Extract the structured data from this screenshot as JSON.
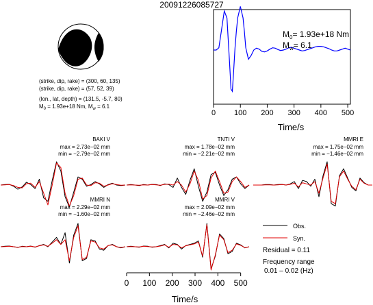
{
  "title": "20091226085727",
  "source_params": {
    "line1": "(strike, dip, rake) = (300, 60, 135)",
    "line2": "(strike, dip, rake) = (57, 52, 39)",
    "line3": "(lon., lat, depth) = (131.5, -5.7, 80)",
    "m0_value": "1.93e+18 Nm",
    "mw_value": "6.1"
  },
  "stf": {
    "m0_label": "= 1.93e+18 Nm",
    "mw_label": "= 6.1",
    "xlabel": "Time/s"
  },
  "legend": {
    "obs": "Obs.",
    "syn": "Syn.",
    "residual": "Residual = 0.11",
    "freq_title": "Frequency range",
    "freq_range": "0.01 – 0.02 (Hz)"
  },
  "waveform_xlabel": "Time/s",
  "colors": {
    "stf": "#0000ff",
    "obs": "#000000",
    "syn": "#e00000",
    "mech_fill": "#000000"
  },
  "chart_data": [
    {
      "type": "line",
      "name": "source time function",
      "x_ticks": [
        0,
        100,
        200,
        300,
        400,
        500
      ],
      "xlim": [
        0,
        510
      ],
      "series": [
        {
          "name": "STF",
          "x": [
            0,
            10,
            20,
            30,
            40,
            50,
            60,
            65,
            70,
            75,
            80,
            85,
            90,
            100,
            110,
            115,
            120,
            130,
            140,
            150,
            160,
            170,
            180,
            190,
            200,
            210,
            220,
            230,
            240,
            250,
            260,
            270,
            280,
            290,
            300,
            310,
            320,
            330,
            340,
            350,
            360,
            370,
            380,
            390,
            400,
            410,
            420,
            430,
            440,
            450,
            460,
            470,
            480,
            490,
            500,
            510
          ],
          "y": [
            0.0,
            0.0,
            0.05,
            0.45,
            0.85,
            0.7,
            -0.3,
            -0.85,
            -0.9,
            -0.45,
            0.05,
            0.4,
            0.7,
            0.95,
            0.7,
            0.4,
            0.05,
            -0.2,
            -0.12,
            0.0,
            0.04,
            0.02,
            -0.03,
            -0.04,
            -0.02,
            0.02,
            0.05,
            0.04,
            0.01,
            -0.01,
            0.0,
            0.02,
            0.05,
            0.06,
            0.04,
            0.02,
            0.0,
            -0.02,
            -0.01,
            0.01,
            0.03,
            0.05,
            0.07,
            0.08,
            0.08,
            0.07,
            0.05,
            0.03,
            0.0,
            -0.02,
            -0.02,
            0.0,
            0.02,
            0.04,
            0.02,
            0.0
          ]
        }
      ]
    },
    {
      "type": "line",
      "name": "waveforms",
      "xlim": [
        0,
        510
      ],
      "x_ticks": [
        0,
        100,
        200,
        300,
        400,
        500
      ],
      "panels": [
        {
          "station": "BAKI V",
          "max": "max = 2.73e−02 mm",
          "min": "min = −2.79e−02 mm",
          "obs": [
            0,
            0.02,
            0.03,
            -0.05,
            -0.18,
            -0.08,
            0.12,
            0.02,
            -0.15,
            0.25,
            -0.55,
            -0.7,
            0.2,
            1.0,
            0.6,
            -0.5,
            -0.95,
            -0.3,
            0.35,
            0.25,
            -0.05,
            0.02,
            0.15,
            0.05,
            -0.1,
            0.02,
            0.08,
            0.0,
            -0.02,
            0
          ],
          "syn": [
            0,
            0.01,
            0.02,
            -0.02,
            -0.1,
            -0.12,
            0.06,
            0.08,
            -0.1,
            0.15,
            -0.35,
            -0.85,
            0.0,
            0.95,
            0.75,
            -0.35,
            -0.9,
            -0.45,
            0.25,
            0.3,
            0.0,
            -0.02,
            0.1,
            0.08,
            -0.05,
            0.0,
            0.06,
            0.02,
            -0.01,
            0
          ]
        },
        {
          "station": "TNTI V",
          "max": "max = 1.78e−02 mm",
          "min": "min = −2.21e−02 mm",
          "obs": [
            0,
            0.02,
            0.0,
            -0.02,
            0.02,
            0.0,
            0.03,
            0.02,
            -0.02,
            0.05,
            0.02,
            -0.1,
            0.3,
            -0.1,
            -0.4,
            0.2,
            0.7,
            -0.05,
            -0.7,
            -0.3,
            0.45,
            0.55,
            0.0,
            -0.45,
            -0.2,
            0.25,
            0.35,
            0.05,
            -0.15,
            0
          ],
          "syn": [
            0,
            0.01,
            0.0,
            -0.01,
            0.01,
            0.0,
            0.02,
            0.01,
            -0.01,
            0.03,
            0.04,
            0.0,
            0.15,
            0.0,
            -0.3,
            0.05,
            0.6,
            0.2,
            -0.6,
            -0.45,
            0.3,
            0.6,
            0.15,
            -0.35,
            -0.3,
            0.15,
            0.35,
            0.15,
            -0.1,
            0
          ]
        },
        {
          "station": "MMRI E",
          "max": "max = 1.75e−02 mm",
          "min": "min = −1.46e−02 mm",
          "obs": [
            0,
            0.0,
            0.0,
            0.02,
            0.02,
            0.0,
            0.02,
            0.03,
            0.0,
            0.05,
            0.15,
            -0.15,
            0.2,
            0.15,
            -0.05,
            0.25,
            -0.5,
            0.4,
            1.0,
            -0.8,
            -0.9,
            0.4,
            0.7,
            0.3,
            -0.1,
            -0.25,
            0.3,
            0.1,
            0.0,
            0
          ],
          "syn": [
            0,
            0.0,
            0.0,
            0.01,
            0.01,
            0.0,
            0.01,
            0.02,
            0.0,
            0.03,
            0.08,
            -0.08,
            0.1,
            0.05,
            0.0,
            0.15,
            -0.35,
            0.3,
            0.9,
            -0.7,
            -0.8,
            0.35,
            0.6,
            0.25,
            -0.05,
            -0.2,
            0.25,
            0.08,
            0.0,
            0
          ]
        },
        {
          "station": "MMRI N",
          "max": "max = 2.29e−02 mm",
          "min": "min = −1.60e−02 mm",
          "obs": [
            0,
            0.02,
            0.03,
            0.0,
            -0.03,
            0.02,
            0.0,
            0.03,
            -0.02,
            0.05,
            0.1,
            0.0,
            0.2,
            0.4,
            0.1,
            0.6,
            -0.7,
            0.5,
            1.0,
            -0.6,
            -0.5,
            0.3,
            0.25,
            -0.1,
            -0.15,
            0.05,
            0.1,
            0.0,
            -0.05,
            0
          ],
          "syn": [
            0,
            0.01,
            0.02,
            0.0,
            -0.02,
            0.01,
            0.0,
            0.02,
            -0.01,
            0.04,
            0.08,
            0.02,
            0.15,
            0.3,
            0.1,
            0.3,
            -0.6,
            0.4,
            0.9,
            -0.55,
            -0.45,
            0.25,
            0.2,
            -0.05,
            -0.1,
            0.05,
            0.08,
            0.0,
            -0.03,
            0
          ]
        },
        {
          "station": "MMRI V",
          "max": "max = 2.09e−02 mm",
          "min": "min = −2.46e−02 mm",
          "obs": [
            0,
            0.02,
            0.0,
            -0.02,
            0.03,
            0.02,
            -0.02,
            0.0,
            0.05,
            0.1,
            -0.05,
            0.15,
            0.1,
            -0.1,
            0.05,
            0.1,
            0.15,
            0.25,
            -0.45,
            1.0,
            -0.95,
            -0.4,
            0.55,
            0.35,
            -0.3,
            -0.2,
            0.15,
            0.08,
            -0.05,
            0
          ],
          "syn": [
            0,
            0.01,
            0.0,
            -0.01,
            0.02,
            0.01,
            -0.01,
            0.0,
            0.03,
            0.08,
            -0.02,
            0.1,
            0.08,
            -0.05,
            0.04,
            0.08,
            0.12,
            0.2,
            -0.4,
            0.95,
            -1.0,
            -0.35,
            0.5,
            0.3,
            -0.25,
            -0.15,
            0.12,
            0.06,
            -0.04,
            0
          ]
        }
      ]
    }
  ]
}
